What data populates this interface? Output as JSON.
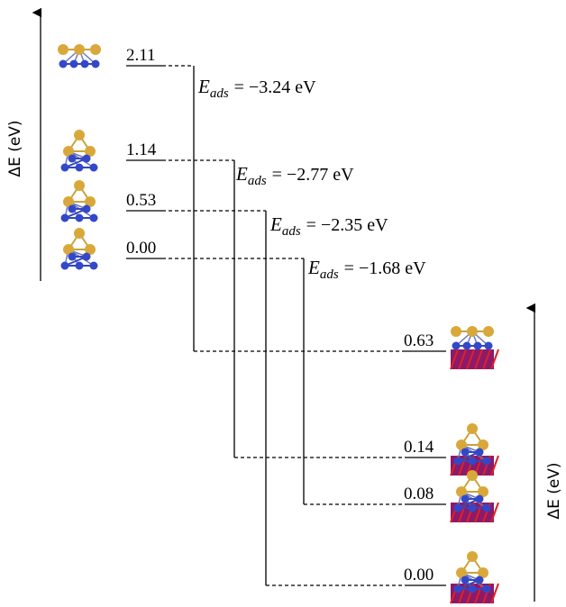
{
  "left_axis_label": "ΔE (eV)",
  "right_axis_label": "ΔE (eV)",
  "left_levels": [
    {
      "label": "2.11"
    },
    {
      "label": "1.14"
    },
    {
      "label": "0.53"
    },
    {
      "label": "0.00"
    }
  ],
  "right_levels": [
    {
      "label": "0.63"
    },
    {
      "label": "0.14"
    },
    {
      "label": "0.08"
    },
    {
      "label": "0.00"
    }
  ],
  "adsorption": [
    {
      "symbol": "E",
      "subscript": "ads",
      "value": "= −3.24 eV"
    },
    {
      "symbol": "E",
      "subscript": "ads",
      "value": "= −2.77 eV"
    },
    {
      "symbol": "E",
      "subscript": "ads",
      "value": "= −2.35 eV"
    },
    {
      "symbol": "E",
      "subscript": "ads",
      "value": "= −1.68 eV"
    }
  ]
}
